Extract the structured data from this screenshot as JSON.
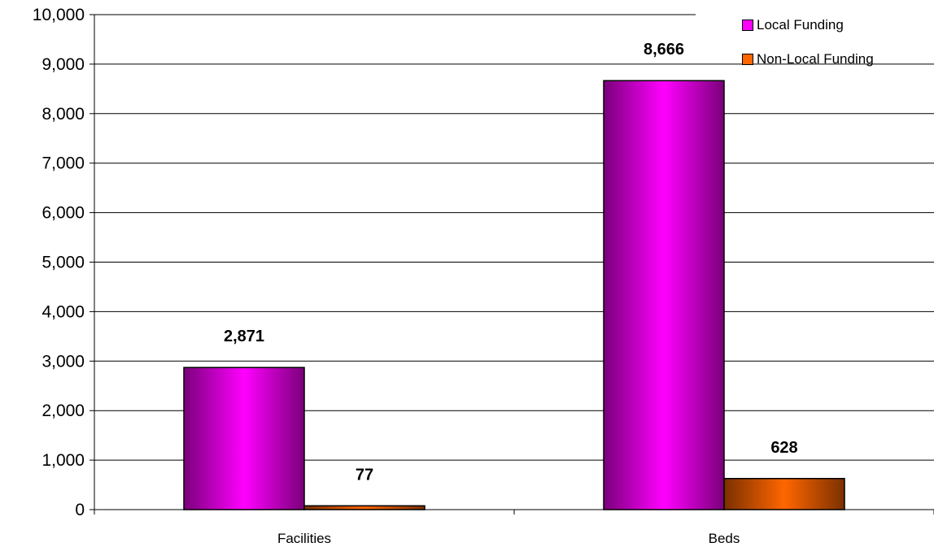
{
  "chart_data": {
    "type": "bar",
    "categories": [
      "Facilities",
      "Beds"
    ],
    "series": [
      {
        "name": "Local Funding",
        "values": [
          2871,
          8666
        ],
        "labels": [
          "2,871",
          "8,666"
        ]
      },
      {
        "name": "Non-Local Funding",
        "values": [
          77,
          628
        ],
        "labels": [
          "77",
          "628"
        ]
      }
    ],
    "title": "",
    "xlabel": "",
    "ylabel": "",
    "ylim": [
      0,
      10000
    ],
    "yticks": [
      0,
      1000,
      2000,
      3000,
      4000,
      5000,
      6000,
      7000,
      8000,
      9000,
      10000
    ],
    "ytick_labels": [
      "0",
      "1,000",
      "2,000",
      "3,000",
      "4,000",
      "5,000",
      "6,000",
      "7,000",
      "8,000",
      "9,000",
      "10,000"
    ],
    "grid": true,
    "legend_position": "top-right"
  },
  "colors": {
    "local_funding": "#ff00ff",
    "local_funding_dark": "#7a007a",
    "non_local_funding": "#ff6600",
    "non_local_funding_dark": "#7a3000",
    "gridline": "#000000"
  }
}
